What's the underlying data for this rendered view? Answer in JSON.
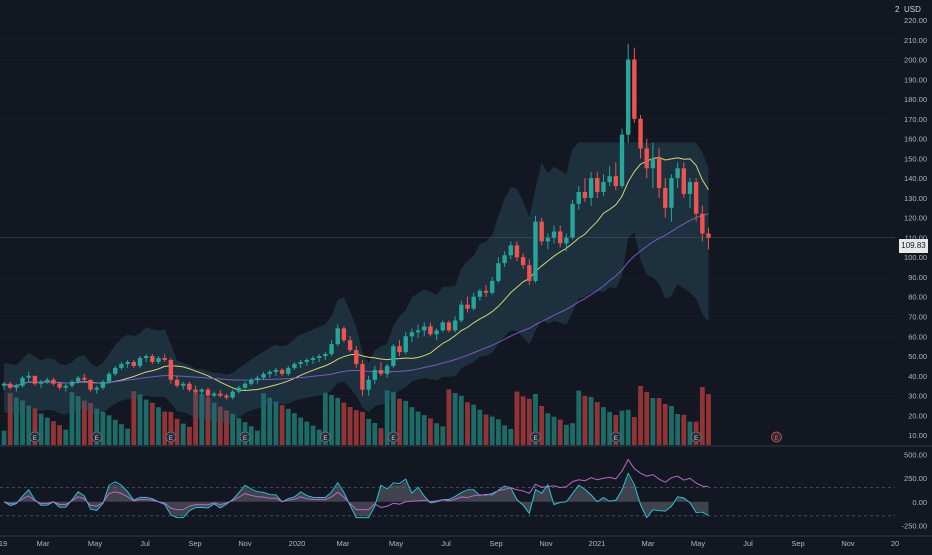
{
  "header": {
    "currency": "USD",
    "scale_mark": "2"
  },
  "last_price": {
    "value": 109.83,
    "label": "109.83"
  },
  "colors": {
    "background": "#131722",
    "up": "#26a69a",
    "down": "#ef5350",
    "vol_up": "#1f7a73",
    "vol_down": "#a83a3a",
    "band_fill": "#2f5e73",
    "ma_yellow": "#d6d66a",
    "ma_purple": "#7e57c2",
    "rsi_cyan": "#26c6da",
    "rsi_purple": "#ba68c8",
    "grid": "#363a45",
    "axis_text": "#b2b5be"
  },
  "chart_data": [
    {
      "type": "candlestick",
      "price_axis": {
        "ylim": [
          5,
          220
        ],
        "ticks": [
          "10.00",
          "20.00",
          "30.00",
          "40.00",
          "50.00",
          "60.00",
          "70.00",
          "80.00",
          "90.00",
          "100.00",
          "110.00",
          "120.00",
          "130.00",
          "140.00",
          "150.00",
          "160.00",
          "170.00",
          "180.00",
          "190.00",
          "200.00",
          "210.00",
          "220.00"
        ]
      },
      "time_axis": {
        "labels": [
          "19",
          "Mar",
          "May",
          "Jul",
          "Sep",
          "Nov",
          "2020",
          "Mar",
          "May",
          "Jul",
          "Sep",
          "Nov",
          "2021",
          "Mar",
          "May",
          "Jul",
          "Sep",
          "Nov",
          "20"
        ]
      },
      "candles": [
        [
          0,
          35,
          37,
          33,
          36
        ],
        [
          1,
          36,
          37,
          33,
          34
        ],
        [
          2,
          34,
          36,
          32,
          35
        ],
        [
          3,
          35,
          40,
          34,
          39
        ],
        [
          4,
          39,
          42,
          37,
          40
        ],
        [
          5,
          40,
          40,
          35,
          36
        ],
        [
          6,
          36,
          38,
          34,
          37
        ],
        [
          7,
          37,
          39,
          36,
          38
        ],
        [
          8,
          38,
          39,
          35,
          36
        ],
        [
          9,
          36,
          37,
          33,
          34
        ],
        [
          10,
          34,
          36,
          32,
          35
        ],
        [
          11,
          35,
          38,
          34,
          37
        ],
        [
          12,
          37,
          40,
          36,
          39
        ],
        [
          13,
          39,
          41,
          37,
          38
        ],
        [
          14,
          38,
          38,
          32,
          33
        ],
        [
          15,
          33,
          35,
          31,
          34
        ],
        [
          16,
          34,
          38,
          33,
          37
        ],
        [
          17,
          37,
          42,
          36,
          41
        ],
        [
          18,
          41,
          45,
          40,
          44
        ],
        [
          19,
          44,
          47,
          43,
          46
        ],
        [
          20,
          46,
          48,
          44,
          47
        ],
        [
          21,
          47,
          48,
          44,
          45
        ],
        [
          22,
          45,
          50,
          44,
          49
        ],
        [
          23,
          49,
          51,
          47,
          50
        ],
        [
          24,
          50,
          51,
          46,
          47
        ],
        [
          25,
          47,
          50,
          46,
          49
        ],
        [
          26,
          49,
          51,
          47,
          48
        ],
        [
          27,
          48,
          49,
          36,
          38
        ],
        [
          28,
          38,
          40,
          34,
          35
        ],
        [
          29,
          35,
          37,
          33,
          36
        ],
        [
          30,
          36,
          37,
          32,
          33
        ],
        [
          31,
          33,
          35,
          31,
          32
        ],
        [
          32,
          32,
          34,
          30,
          33
        ],
        [
          33,
          33,
          34,
          29,
          30
        ],
        [
          34,
          30,
          32,
          29,
          31
        ],
        [
          35,
          31,
          33,
          29,
          30
        ],
        [
          36,
          30,
          31,
          28,
          29
        ],
        [
          37,
          29,
          33,
          28,
          32
        ],
        [
          38,
          32,
          35,
          31,
          34
        ],
        [
          39,
          34,
          37,
          33,
          36
        ],
        [
          40,
          36,
          39,
          35,
          38
        ],
        [
          41,
          38,
          40,
          36,
          39
        ],
        [
          42,
          39,
          42,
          38,
          41
        ],
        [
          43,
          41,
          43,
          39,
          42
        ],
        [
          44,
          42,
          44,
          40,
          43
        ],
        [
          45,
          43,
          44,
          40,
          41
        ],
        [
          46,
          41,
          45,
          40,
          44
        ],
        [
          47,
          44,
          47,
          43,
          46
        ],
        [
          48,
          46,
          48,
          44,
          47
        ],
        [
          49,
          47,
          49,
          45,
          48
        ],
        [
          50,
          48,
          50,
          46,
          49
        ],
        [
          51,
          49,
          51,
          47,
          50
        ],
        [
          52,
          50,
          52,
          48,
          51
        ],
        [
          53,
          51,
          58,
          50,
          56
        ],
        [
          54,
          56,
          66,
          55,
          64
        ],
        [
          55,
          64,
          65,
          57,
          58
        ],
        [
          56,
          58,
          60,
          52,
          53
        ],
        [
          57,
          53,
          55,
          44,
          46
        ],
        [
          58,
          46,
          48,
          30,
          33
        ],
        [
          59,
          33,
          40,
          30,
          38
        ],
        [
          60,
          38,
          45,
          36,
          43
        ],
        [
          61,
          43,
          47,
          40,
          41
        ],
        [
          62,
          41,
          46,
          39,
          45
        ],
        [
          63,
          45,
          56,
          44,
          55
        ],
        [
          64,
          55,
          58,
          50,
          52
        ],
        [
          65,
          52,
          62,
          51,
          60
        ],
        [
          66,
          60,
          64,
          57,
          62
        ],
        [
          67,
          62,
          66,
          59,
          63
        ],
        [
          68,
          63,
          67,
          60,
          65
        ],
        [
          69,
          65,
          67,
          60,
          61
        ],
        [
          70,
          61,
          64,
          58,
          63
        ],
        [
          71,
          63,
          68,
          62,
          67
        ],
        [
          72,
          67,
          68,
          62,
          63
        ],
        [
          73,
          63,
          70,
          62,
          68
        ],
        [
          74,
          68,
          78,
          67,
          76
        ],
        [
          75,
          76,
          80,
          72,
          74
        ],
        [
          76,
          74,
          82,
          73,
          80
        ],
        [
          77,
          80,
          84,
          78,
          83
        ],
        [
          78,
          83,
          86,
          80,
          82
        ],
        [
          79,
          82,
          90,
          81,
          88
        ],
        [
          80,
          88,
          100,
          87,
          97
        ],
        [
          81,
          97,
          103,
          95,
          101
        ],
        [
          82,
          101,
          108,
          99,
          106
        ],
        [
          83,
          106,
          108,
          98,
          100
        ],
        [
          84,
          100,
          102,
          94,
          96
        ],
        [
          85,
          96,
          99,
          86,
          88
        ],
        [
          86,
          88,
          121,
          87,
          118
        ],
        [
          87,
          118,
          120,
          106,
          108
        ],
        [
          88,
          108,
          112,
          104,
          110
        ],
        [
          89,
          110,
          116,
          107,
          113
        ],
        [
          90,
          113,
          116,
          105,
          107
        ],
        [
          91,
          107,
          112,
          103,
          110
        ],
        [
          92,
          110,
          129,
          109,
          127
        ],
        [
          93,
          127,
          136,
          124,
          133
        ],
        [
          94,
          133,
          140,
          128,
          130
        ],
        [
          95,
          130,
          143,
          126,
          140
        ],
        [
          96,
          140,
          143,
          130,
          133
        ],
        [
          97,
          133,
          142,
          131,
          138
        ],
        [
          98,
          138,
          146,
          136,
          141
        ],
        [
          99,
          141,
          148,
          134,
          136
        ],
        [
          100,
          136,
          165,
          135,
          162
        ],
        [
          101,
          162,
          208,
          158,
          200
        ],
        [
          102,
          200,
          206,
          168,
          170
        ],
        [
          103,
          170,
          172,
          150,
          155
        ],
        [
          104,
          155,
          160,
          140,
          145
        ],
        [
          105,
          145,
          158,
          135,
          150
        ],
        [
          106,
          150,
          155,
          130,
          135
        ],
        [
          107,
          135,
          140,
          120,
          125
        ],
        [
          108,
          125,
          142,
          118,
          140
        ],
        [
          109,
          140,
          148,
          135,
          145
        ],
        [
          110,
          145,
          148,
          130,
          132
        ],
        [
          111,
          132,
          140,
          125,
          138
        ],
        [
          112,
          138,
          140,
          118,
          122
        ],
        [
          113,
          122,
          126,
          108,
          112
        ],
        [
          114,
          112,
          115,
          104,
          109.83
        ]
      ],
      "volume_note": "volume bars shown under the candles"
    },
    {
      "type": "line",
      "panel": "oscillator",
      "ylim": [
        -300,
        550
      ],
      "ticks": [
        "500.00",
        "250.00",
        "0.00",
        "-250.00"
      ]
    }
  ],
  "earnings_markers": {
    "label": "E",
    "count": 13
  }
}
